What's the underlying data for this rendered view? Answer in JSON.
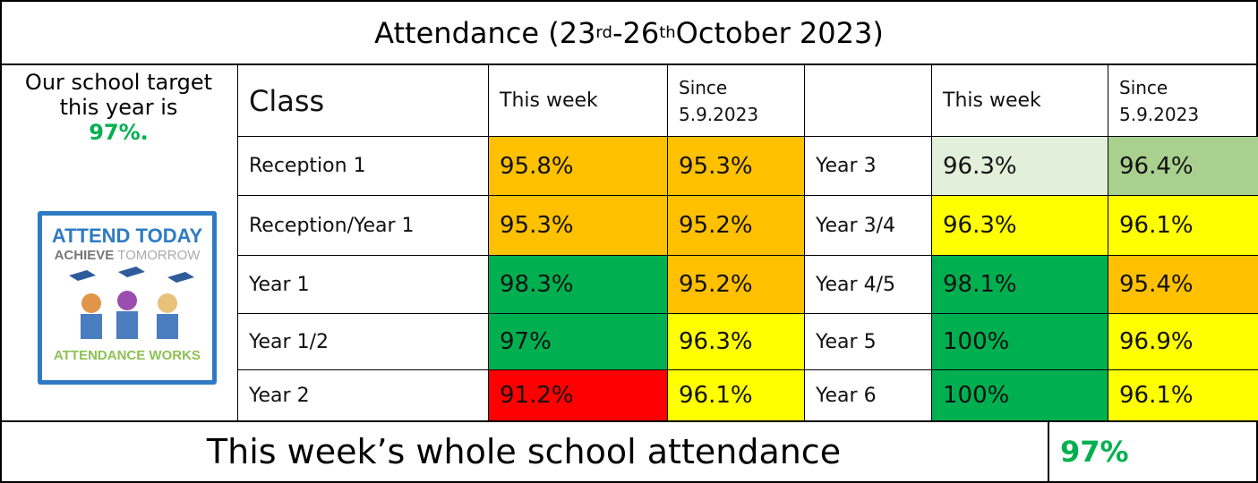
{
  "title": {
    "main": "Attendance (23",
    "sup1": "rd",
    "mid": "-26",
    "sup2": "th",
    "end": " October 2023)"
  },
  "target": {
    "text": "Our school target this year is",
    "value": "97%."
  },
  "poster": {
    "line1": "ATTEND TODAY",
    "line2a": "ACHIEVE",
    "line2b": " TOMORROW",
    "line3": "ATTENDANCE WORKS"
  },
  "headers": [
    "Class",
    "This week",
    "Since 5.9.2023"
  ],
  "headers_right": [
    "This week",
    "Since 5.9.2023"
  ],
  "rows": [
    {
      "left": {
        "class": "Reception 1",
        "this_week": {
          "text": "95.8%",
          "color": "#ffc000"
        },
        "since": {
          "text": "95.3%",
          "color": "#ffc000"
        }
      },
      "right": {
        "class": "Year 3",
        "this_week": {
          "text": "96.3%",
          "color": "#e2efda"
        },
        "since": {
          "text": "96.4%",
          "color": "#a9d08e"
        }
      }
    },
    {
      "left": {
        "class": "Reception/Year 1",
        "this_week": {
          "text": "95.3%",
          "color": "#ffc000"
        },
        "since": {
          "text": "95.2%",
          "color": "#ffc000"
        }
      },
      "right": {
        "class": "Year 3/4",
        "this_week": {
          "text": "96.3%",
          "color": "#ffff00"
        },
        "since": {
          "text": "96.1%",
          "color": "#ffff00"
        }
      }
    },
    {
      "left": {
        "class": "Year 1",
        "this_week": {
          "text": "98.3%",
          "color": "#00b050"
        },
        "since": {
          "text": "95.2%",
          "color": "#ffc000"
        }
      },
      "right": {
        "class": "Year 4/5",
        "this_week": {
          "text": "98.1%",
          "color": "#00b050"
        },
        "since": {
          "text": "95.4%",
          "color": "#ffc000"
        }
      }
    },
    {
      "left": {
        "class": "Year 1/2",
        "this_week": {
          "text": "97%",
          "color": "#00b050"
        },
        "since": {
          "text": "96.3%",
          "color": "#ffff00"
        }
      },
      "right": {
        "class": "Year 5",
        "this_week": {
          "text": "100%",
          "color": "#00b050"
        },
        "since": {
          "text": "96.9%",
          "color": "#ffff00"
        }
      }
    },
    {
      "left": {
        "class": "Year 2",
        "this_week": {
          "text": "91.2%",
          "color": "#ff0000"
        },
        "since": {
          "text": "96.1%",
          "color": "#ffff00"
        }
      },
      "right": {
        "class": "Year 6",
        "this_week": {
          "text": "100%",
          "color": "#00b050"
        },
        "since": {
          "text": "96.1%",
          "color": "#ffff00"
        }
      }
    }
  ],
  "footer": {
    "label": "This week’s whole school attendance",
    "value": "97%"
  }
}
